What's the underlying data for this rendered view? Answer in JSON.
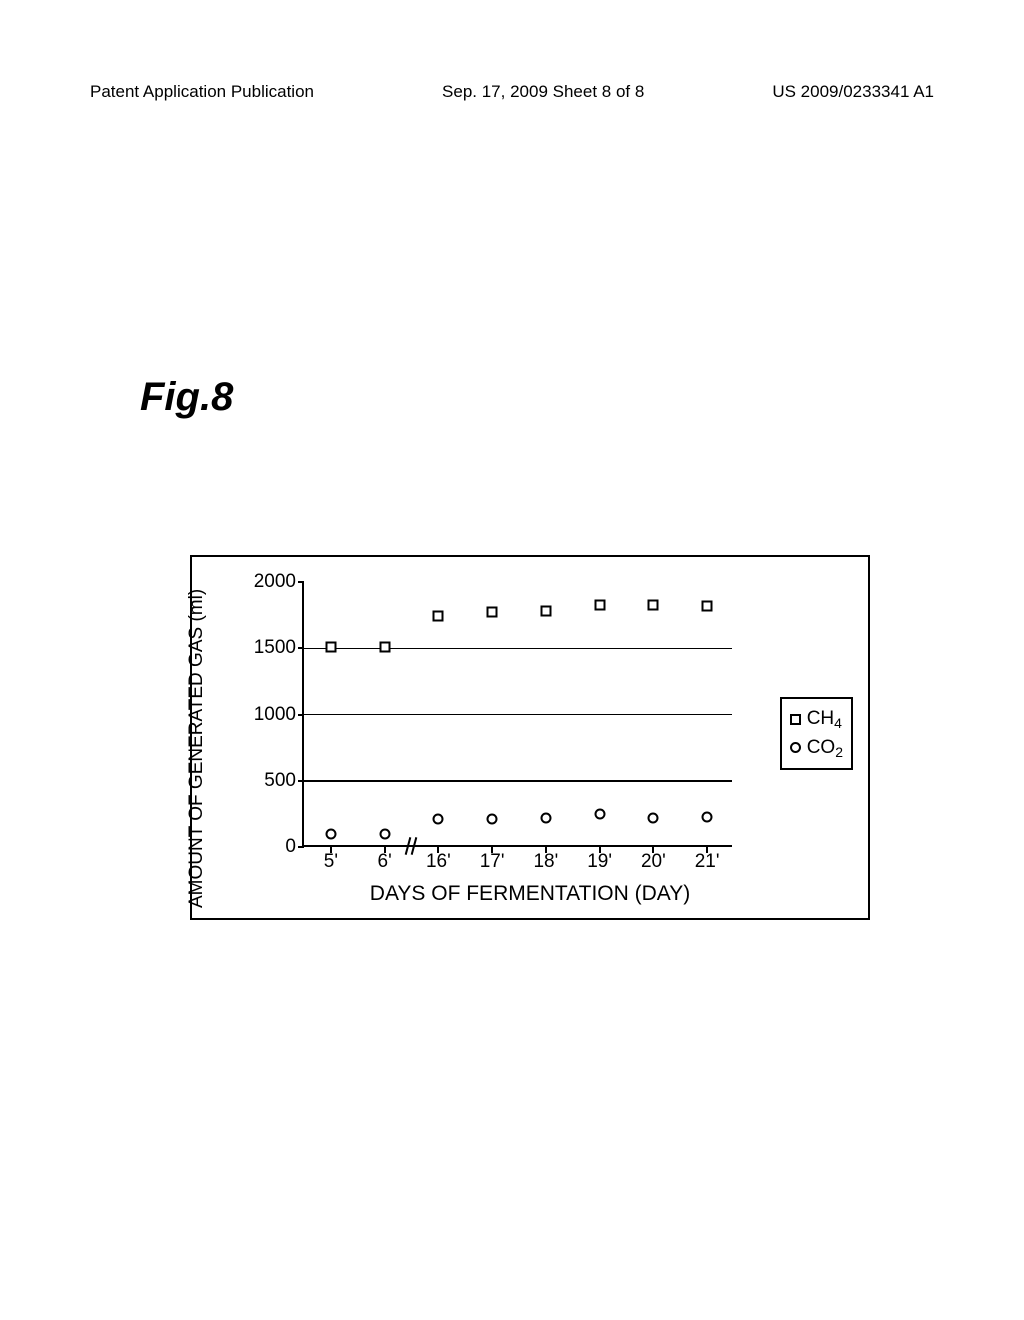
{
  "header": {
    "left": "Patent Application Publication",
    "center": "Sep. 17, 2009  Sheet 8 of 8",
    "right": "US 2009/0233341 A1"
  },
  "figure_label": "Fig.8",
  "chart": {
    "type": "scatter",
    "y_label": "AMOUNT OF GENERATED GAS (ml)",
    "x_label": "DAYS OF FERMENTATION (DAY)",
    "ylim": [
      0,
      2000
    ],
    "ytick_step": 500,
    "y_ticks": [
      0,
      500,
      1000,
      1500,
      2000
    ],
    "x_categories": [
      "5'",
      "6'",
      "16'",
      "17'",
      "18'",
      "19'",
      "20'",
      "21'"
    ],
    "axis_break_after_index": 1,
    "series": [
      {
        "name": "CH4",
        "sub": "4",
        "base": "CH",
        "marker": "square",
        "values": [
          1510,
          1510,
          1740,
          1770,
          1780,
          1830,
          1830,
          1820
        ]
      },
      {
        "name": "CO2",
        "sub": "2",
        "base": "CO",
        "marker": "circle",
        "values": [
          100,
          100,
          210,
          210,
          220,
          250,
          220,
          230
        ]
      }
    ],
    "colors": {
      "background": "#ffffff",
      "axis": "#000000",
      "grid": "#000000",
      "marker_stroke": "#000000",
      "marker_fill": "#ffffff"
    },
    "grid_y_values": [
      500,
      1000,
      1500
    ],
    "plot_top_open": true
  }
}
